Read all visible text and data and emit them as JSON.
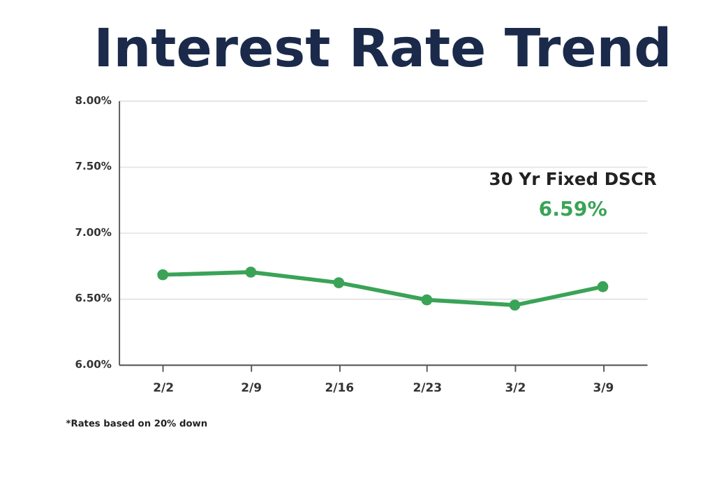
{
  "chart_data": {
    "type": "line",
    "title": "Interest Rate Trend",
    "categories": [
      "2/2",
      "2/9",
      "2/16",
      "2/23",
      "3/2",
      "3/9"
    ],
    "series": [
      {
        "color": "#3aa357",
        "values": [
          6.68,
          6.7,
          6.62,
          6.49,
          6.45,
          6.59
        ]
      }
    ],
    "ylim": [
      6.0,
      8.0
    ],
    "yticks": [
      {
        "value": 6.0,
        "label": "6.00%"
      },
      {
        "value": 6.5,
        "label": "6.50%"
      },
      {
        "value": 7.0,
        "label": "7.00%"
      },
      {
        "value": 7.5,
        "label": "7.50%"
      },
      {
        "value": 8.0,
        "label": "8.00%"
      }
    ],
    "grid": "y",
    "marker": "circle",
    "line_style": "solid",
    "legend": false,
    "annotations": [
      "30 Yr Fixed DSCR",
      "6.59%",
      "*Rates based on 20% down"
    ]
  }
}
